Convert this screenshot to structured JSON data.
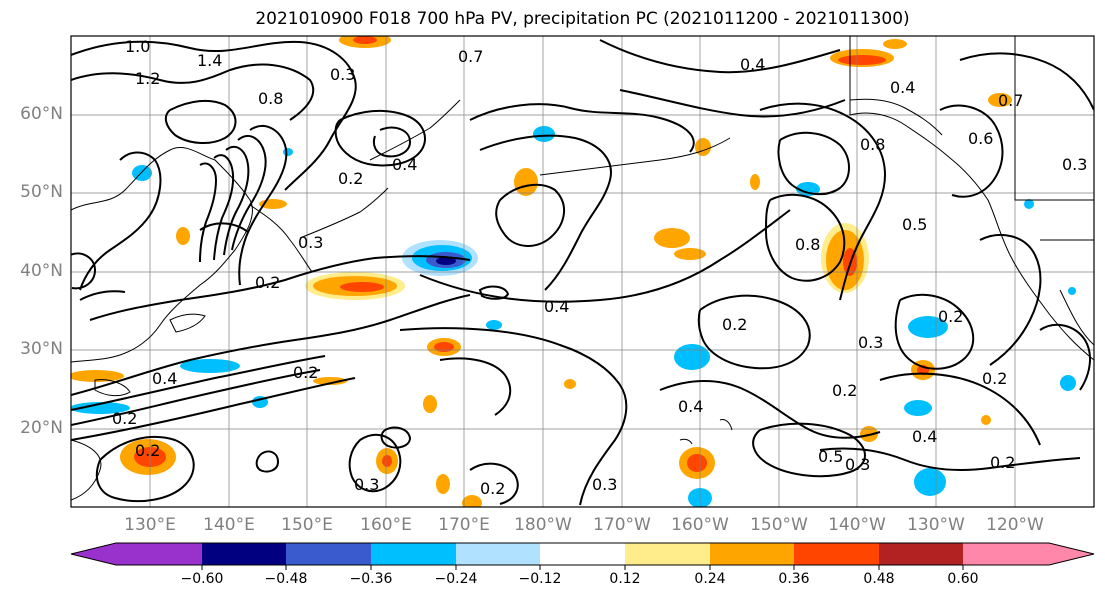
{
  "title": "2021010900 F018 700 hPa PV, precipitation PC (2021011200 - 2021011300)",
  "map": {
    "lat_labels": [
      "60°N",
      "50°N",
      "40°N",
      "30°N",
      "20°N"
    ],
    "lon_labels": [
      "130°E",
      "140°E",
      "150°E",
      "160°E",
      "170°E",
      "180°W",
      "170°W",
      "160°W",
      "150°W",
      "140°W",
      "130°W",
      "120°W"
    ],
    "lon_range": [
      "120°E",
      "115°W"
    ],
    "lat_range": [
      "10°N",
      "70°N"
    ],
    "contour_labels": [
      "1.0",
      "1.4",
      "1.2",
      "0.7",
      "0.8",
      "0.3",
      "0.4",
      "0.2",
      "0.3",
      "0.4",
      "0.2",
      "0.2",
      "0.2",
      "0.3",
      "0.2",
      "0.4",
      "0.2",
      "0.3",
      "0.8",
      "0.4",
      "0.4",
      "0.7",
      "0.6",
      "0.8",
      "0.5",
      "0.3",
      "0.2",
      "0.4",
      "0.5",
      "0.3",
      "0.2",
      "0.2",
      "0.4",
      "0.2",
      "0.3",
      "0.2"
    ]
  },
  "colorbar": {
    "ticks": [
      "−0.60",
      "−0.48",
      "−0.36",
      "−0.24",
      "−0.12",
      "0.12",
      "0.24",
      "0.36",
      "0.48",
      "0.60"
    ],
    "colors": [
      "#9932cc",
      "#000080",
      "#3a5bcd",
      "#00bfff",
      "#b0e2ff",
      "#ffffff",
      "#ffec8b",
      "#ffa500",
      "#ff4500",
      "#b22222",
      "#ff88aa"
    ]
  },
  "colors": {
    "neg_light": "#b0e2ff",
    "neg_mid": "#00bfff",
    "neg_strong": "#3a5bcd",
    "neg_deep": "#000080",
    "pos_light": "#ffec8b",
    "pos_mid": "#ffa500",
    "pos_strong": "#ff4500",
    "pos_deep": "#b22222",
    "grid": "#808080",
    "contour": "#000000"
  }
}
